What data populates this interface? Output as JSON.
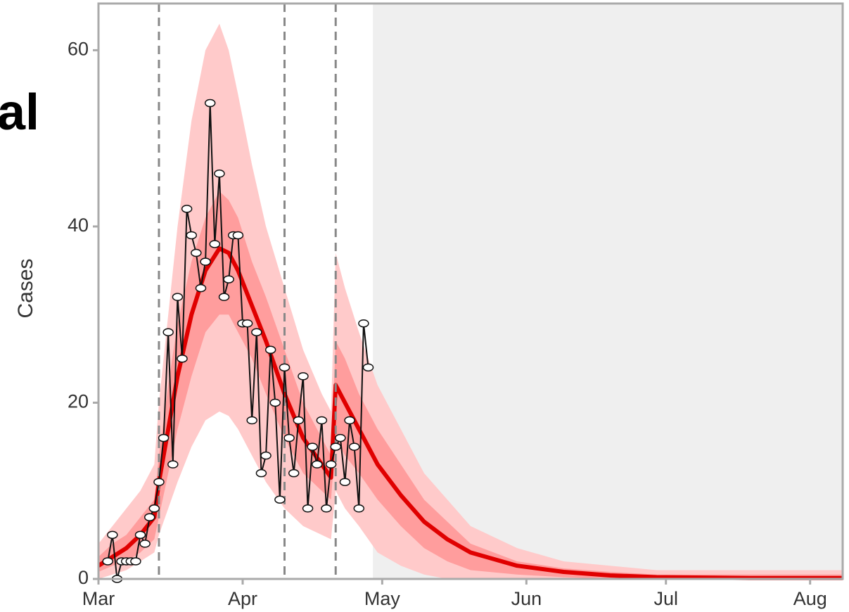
{
  "chart_data": {
    "type": "line",
    "clipped_title": "al",
    "ylabel": "Cases",
    "xlim": [
      0,
      160
    ],
    "xticks": [
      {
        "value": 0,
        "label": "Mar"
      },
      {
        "value": 31,
        "label": "Apr"
      },
      {
        "value": 61,
        "label": "May"
      },
      {
        "value": 92,
        "label": "Jun"
      },
      {
        "value": 122,
        "label": "Jul"
      },
      {
        "value": 153,
        "label": "Aug"
      }
    ],
    "ylim": [
      0,
      65.3
    ],
    "yticks": [
      0,
      20,
      40,
      60
    ],
    "x": [
      2,
      3,
      4,
      5,
      6,
      7,
      8,
      9,
      10,
      11,
      12,
      13,
      14,
      15,
      16,
      17,
      18,
      19,
      20,
      21,
      22,
      23,
      24,
      25,
      26,
      27,
      28,
      29,
      30,
      31,
      32,
      33,
      34,
      35,
      36,
      37,
      38,
      39,
      40,
      41,
      42,
      43,
      44,
      45,
      46,
      47,
      48,
      49,
      50,
      51,
      52,
      53,
      54,
      55,
      56,
      57,
      58
    ],
    "values": [
      2,
      5,
      0,
      2,
      2,
      2,
      2,
      5,
      4,
      7,
      8,
      11,
      16,
      28,
      13,
      32,
      25,
      42,
      39,
      37,
      33,
      36,
      54,
      38,
      46,
      32,
      34,
      39,
      39,
      29,
      29,
      18,
      28,
      12,
      14,
      26,
      20,
      9,
      24,
      16,
      12,
      18,
      23,
      8,
      15,
      13,
      18,
      8,
      13,
      15,
      16,
      11,
      18,
      15,
      8,
      29,
      24
    ],
    "point_color": "#ffffff",
    "line_color": "#111111",
    "vlines": [
      13,
      40,
      51
    ],
    "vline_color": "#888888",
    "forecast_start": 59,
    "forecast_color": "#efefef",
    "model": {
      "x": [
        0,
        3,
        6,
        9,
        12,
        13,
        15,
        17,
        20,
        23,
        26,
        28,
        30,
        33,
        36,
        40,
        44,
        48,
        50,
        51,
        53,
        56,
        60,
        65,
        70,
        75,
        80,
        90,
        100,
        110,
        120,
        140,
        160
      ],
      "median": [
        1.5,
        2.5,
        3.5,
        5,
        7,
        11,
        17,
        23,
        30,
        35,
        37.5,
        37,
        35,
        31,
        27,
        21,
        16,
        13,
        11.5,
        22,
        20,
        17,
        13,
        9.5,
        6.5,
        4.5,
        3,
        1.5,
        0.8,
        0.4,
        0.2,
        0.1,
        0.1
      ],
      "inner_low": [
        0.8,
        1.5,
        2,
        3,
        4.5,
        7,
        12,
        17,
        23,
        28,
        30,
        30,
        28,
        25,
        21,
        16,
        12,
        10,
        9,
        16,
        14,
        12,
        9,
        6,
        3.5,
        2,
        1,
        0.5,
        0.2,
        0,
        0,
        0,
        0
      ],
      "inner_high": [
        2.5,
        4,
        5,
        7,
        9,
        14,
        22,
        29,
        36,
        41,
        44,
        43,
        41,
        36,
        32,
        26,
        20,
        16,
        14,
        27,
        25,
        21,
        17,
        13,
        9,
        6.5,
        4,
        2,
        1.2,
        0.8,
        0.5,
        0.5,
        0.5
      ],
      "outer_low": [
        0,
        0.5,
        1,
        2,
        3,
        5,
        8,
        11,
        15,
        18,
        19,
        18.5,
        17,
        14,
        11,
        8,
        6,
        5,
        4.5,
        10,
        8,
        6,
        3,
        1.5,
        0.5,
        0,
        0,
        0,
        0,
        0,
        0,
        0,
        0
      ],
      "outer_high": [
        4,
        6,
        8,
        10,
        13,
        20,
        30,
        40,
        52,
        60,
        63,
        60,
        55,
        47,
        40,
        33,
        26,
        21,
        19,
        37,
        33,
        28,
        22,
        17,
        12,
        9,
        6,
        3.5,
        2,
        1.5,
        1,
        1,
        1
      ],
      "median_color": "#e00000",
      "inner_color": "#ff9d9d",
      "outer_color": "#ffcaca"
    }
  }
}
